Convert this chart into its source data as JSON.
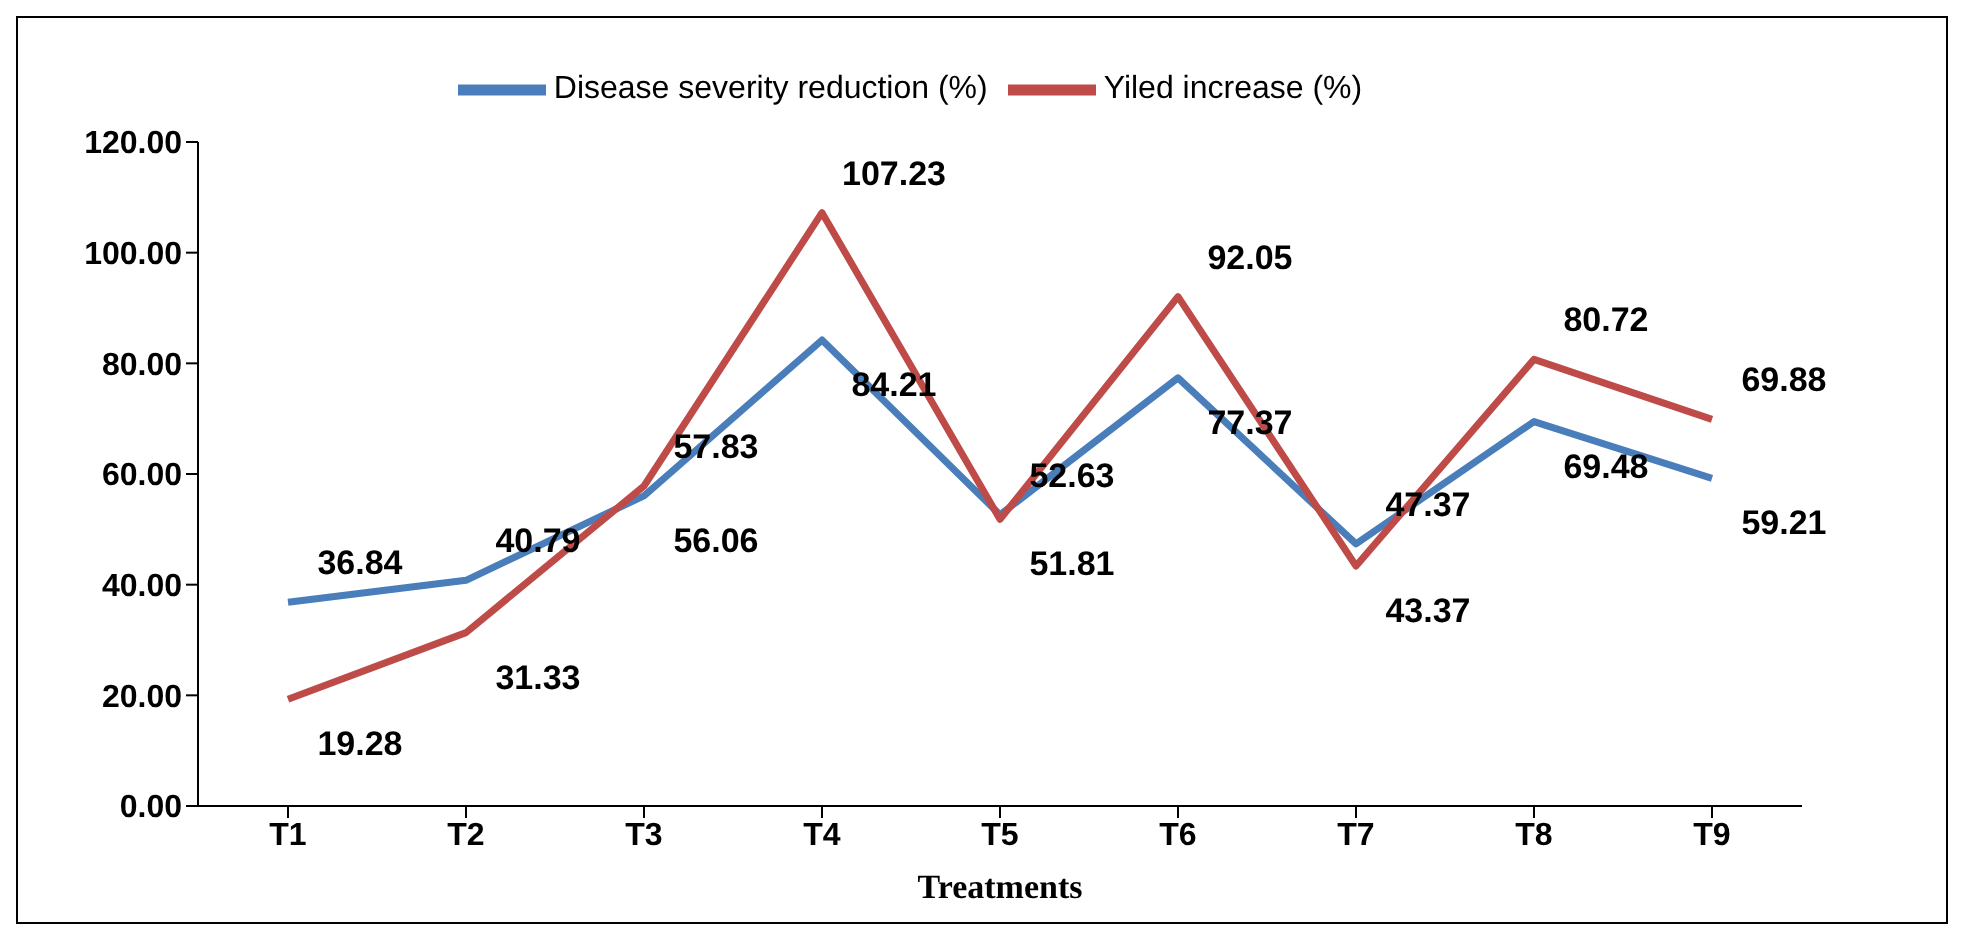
{
  "chart_data": {
    "type": "line",
    "xlabel": "Treatments",
    "categories": [
      "T1",
      "T2",
      "T3",
      "T4",
      "T5",
      "T6",
      "T7",
      "T8",
      "T9"
    ],
    "series": [
      {
        "name": "Disease severity reduction (%)",
        "color": "#4a7ebb",
        "values": [
          36.84,
          40.79,
          56.06,
          84.21,
          52.63,
          77.37,
          47.37,
          69.48,
          59.21
        ]
      },
      {
        "name": "Yiled increase (%)",
        "color": "#be4b48",
        "values": [
          19.28,
          31.33,
          57.83,
          107.23,
          51.81,
          92.05,
          43.37,
          80.72,
          69.88
        ]
      }
    ],
    "ylim": [
      0,
      120
    ],
    "yticks": [
      {
        "value": 0,
        "label": "0.00"
      },
      {
        "value": 20,
        "label": "20.00"
      },
      {
        "value": 40,
        "label": "40.00"
      },
      {
        "value": 60,
        "label": "60.00"
      },
      {
        "value": 80,
        "label": "80.00"
      },
      {
        "value": 100,
        "label": "100.00"
      },
      {
        "value": 120,
        "label": "120.00"
      }
    ],
    "data_labels": true,
    "grid": false,
    "legend": "top",
    "marker": "none",
    "line_style": "solid"
  }
}
